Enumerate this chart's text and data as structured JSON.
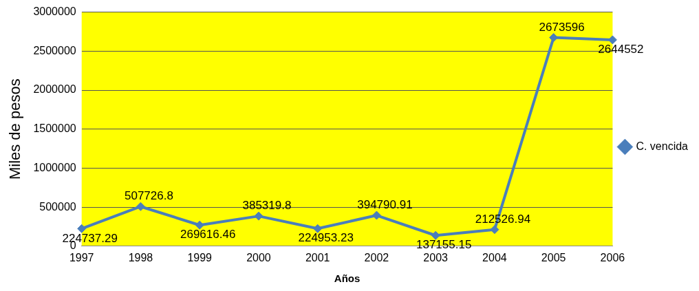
{
  "chart_data": {
    "type": "line",
    "xlabel": "Años",
    "ylabel": "Miles de pesos",
    "categories": [
      "1997",
      "1998",
      "1999",
      "2000",
      "2001",
      "2002",
      "2003",
      "2004",
      "2005",
      "2006"
    ],
    "series": [
      {
        "name": "C. vencida",
        "color": "#4a7ebb",
        "values": [
          224737.29,
          507726.8,
          269616.46,
          385319.8,
          224953.23,
          394790.91,
          137155.15,
          212526.94,
          2673596,
          2644552
        ]
      }
    ],
    "ylim": [
      0,
      3000000
    ],
    "yticks": [
      0,
      500000,
      1000000,
      1500000,
      2000000,
      2500000,
      3000000
    ],
    "grid": "y",
    "legend": "right",
    "marker": "diamond",
    "line_style": "solid",
    "data_labels": true
  }
}
